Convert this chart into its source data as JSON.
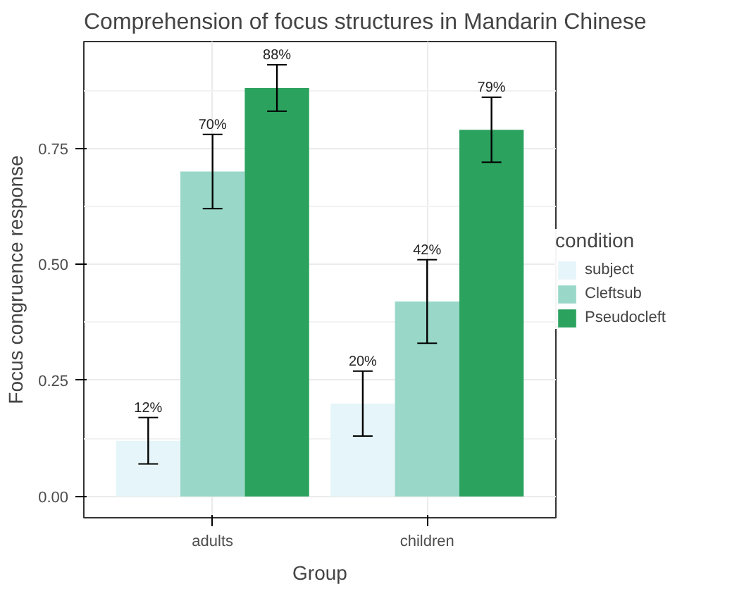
{
  "chart_data": {
    "type": "bar",
    "title": "Comprehension of focus structures in Mandarin Chinese",
    "xlabel": "Group",
    "ylabel": "Focus congruence response",
    "legend_title": "condition",
    "categories": [
      "adults",
      "children"
    ],
    "series": [
      {
        "name": "subject",
        "color": "#e5f5f9",
        "values": [
          0.12,
          0.2
        ],
        "errors": [
          [
            0.07,
            0.17
          ],
          [
            0.13,
            0.27
          ]
        ],
        "value_labels": [
          "12%",
          "20%"
        ]
      },
      {
        "name": "Cleftsub",
        "color": "#99d8c9",
        "values": [
          0.7,
          0.42
        ],
        "errors": [
          [
            0.62,
            0.78
          ],
          [
            0.33,
            0.51
          ]
        ],
        "value_labels": [
          "70%",
          "42%"
        ]
      },
      {
        "name": "Pseudocleft",
        "color": "#2ca25f",
        "values": [
          0.88,
          0.79
        ],
        "errors": [
          [
            0.83,
            0.93
          ],
          [
            0.72,
            0.86
          ]
        ],
        "value_labels": [
          "88%",
          "79%"
        ]
      }
    ],
    "ylim": [
      -0.046,
      0.98
    ],
    "yticks": [
      {
        "value": 0,
        "label": "0.00"
      },
      {
        "value": 0.25,
        "label": "0.25"
      },
      {
        "value": 0.5,
        "label": "0.50"
      },
      {
        "value": 0.75,
        "label": "0.75"
      }
    ],
    "grid": true,
    "legend": "right"
  }
}
